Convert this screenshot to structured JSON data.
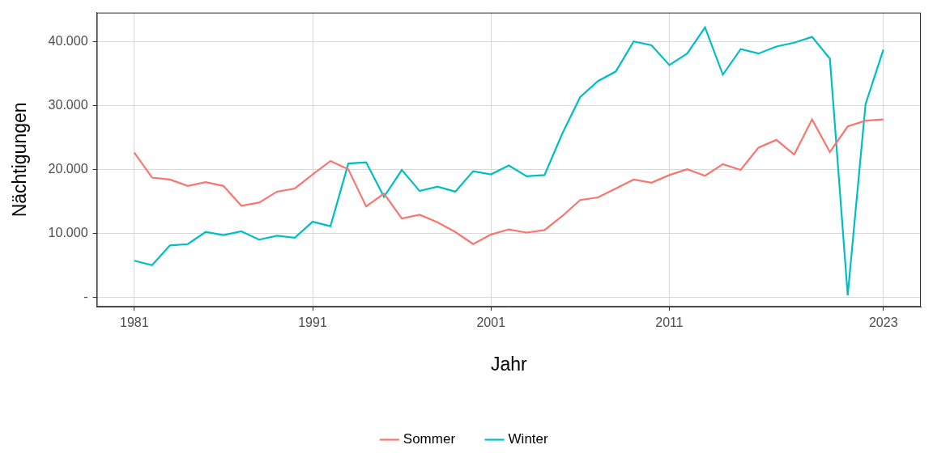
{
  "chart_data": {
    "type": "line",
    "x": [
      1981,
      1982,
      1983,
      1984,
      1985,
      1986,
      1987,
      1988,
      1989,
      1990,
      1991,
      1992,
      1993,
      1994,
      1995,
      1996,
      1997,
      1998,
      1999,
      2000,
      2001,
      2002,
      2003,
      2004,
      2005,
      2006,
      2007,
      2008,
      2009,
      2010,
      2011,
      2012,
      2013,
      2014,
      2015,
      2016,
      2017,
      2018,
      2019,
      2020,
      2021,
      2022,
      2023
    ],
    "series": [
      {
        "name": "Sommer",
        "color": "#F8766D",
        "values": [
          22600,
          18700,
          18400,
          17400,
          18000,
          17400,
          14300,
          14800,
          16500,
          17000,
          19200,
          21300,
          20000,
          14200,
          16200,
          12300,
          12900,
          11700,
          10200,
          8300,
          9800,
          10600,
          10100,
          10500,
          12700,
          15200,
          15600,
          17000,
          18400,
          17900,
          19100,
          20000,
          19000,
          20800,
          19900,
          23400,
          24600,
          22300,
          27800,
          22700,
          26700,
          27600,
          27800
        ]
      },
      {
        "name": "Winter",
        "color": "#00BFC4",
        "values": [
          5700,
          5000,
          8100,
          8300,
          10200,
          9700,
          10300,
          9000,
          9600,
          9300,
          11800,
          11100,
          20900,
          21100,
          15700,
          19900,
          16600,
          17300,
          16500,
          19700,
          19200,
          20600,
          18900,
          19100,
          25600,
          31300,
          33800,
          35300,
          40000,
          39400,
          36300,
          38100,
          42200,
          34800,
          38800,
          38100,
          39200,
          39800,
          40700,
          37300,
          300,
          30200,
          38700
        ]
      }
    ],
    "xlabel": "Jahr",
    "ylabel": "Nächtigungen",
    "xlim": [
      1978.9,
      2025.1
    ],
    "xticks": [
      1981,
      1991,
      2001,
      2011,
      2023
    ],
    "ylim": [
      -1500,
      44500
    ],
    "yticks": [
      {
        "value": 0,
        "label": "-"
      },
      {
        "value": 10000,
        "label": "10.000"
      },
      {
        "value": 20000,
        "label": "20.000"
      },
      {
        "value": 30000,
        "label": "30.000"
      },
      {
        "value": 40000,
        "label": "40.000"
      }
    ],
    "grid": true,
    "legend": "bottom"
  }
}
